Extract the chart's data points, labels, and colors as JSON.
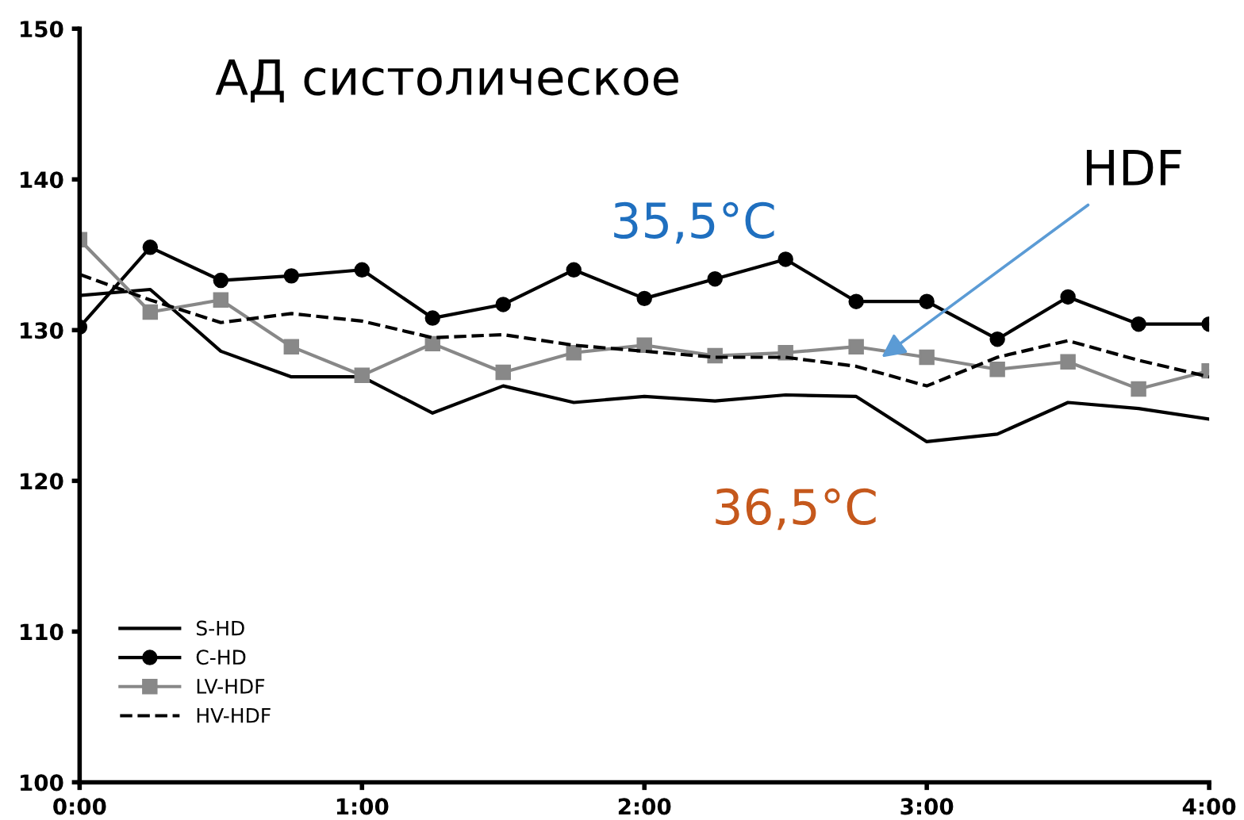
{
  "chart_data": {
    "type": "line",
    "title": "АД систолическое",
    "x": [
      0,
      0.25,
      0.5,
      0.75,
      1,
      1.25,
      1.5,
      1.75,
      2,
      2.25,
      2.5,
      2.75,
      3,
      3.25,
      3.5,
      3.75,
      4
    ],
    "series": [
      {
        "name": "S-HD",
        "color": "#000000",
        "marker": "none",
        "line_style": "solid",
        "values": [
          132.3,
          132.7,
          128.6,
          126.9,
          126.9,
          124.5,
          126.3,
          125.2,
          125.6,
          125.3,
          125.7,
          125.6,
          122.6,
          123.1,
          125.2,
          124.8,
          124.1
        ]
      },
      {
        "name": "C-HD",
        "color": "#000000",
        "marker": "circle",
        "line_style": "solid",
        "values": [
          130.2,
          135.5,
          133.3,
          133.6,
          134,
          130.8,
          131.7,
          134,
          132.1,
          133.4,
          134.7,
          131.9,
          131.9,
          129.4,
          132.2,
          130.4,
          130.4
        ]
      },
      {
        "name": "LV-HDF",
        "color": "#888888",
        "marker": "square",
        "line_style": "solid",
        "values": [
          136,
          131.2,
          132,
          128.9,
          127,
          129.1,
          127.2,
          128.5,
          129,
          128.3,
          128.5,
          128.9,
          128.2,
          127.4,
          127.9,
          126.1,
          127.3
        ]
      },
      {
        "name": "HV-HDF",
        "color": "#000000",
        "marker": "none",
        "line_style": "dashed",
        "values": [
          133.7,
          132,
          130.5,
          131.1,
          130.6,
          129.5,
          129.7,
          129,
          128.6,
          128.2,
          128.2,
          127.6,
          126.3,
          128.2,
          129.3,
          128,
          126.9
        ]
      }
    ],
    "xlim": [
      0,
      4
    ],
    "xticks": [
      {
        "value": 0,
        "label": "0:00"
      },
      {
        "value": 1,
        "label": "1:00"
      },
      {
        "value": 2,
        "label": "2:00"
      },
      {
        "value": 3,
        "label": "3:00"
      },
      {
        "value": 4,
        "label": "4:00"
      }
    ],
    "ylim": [
      100,
      150
    ],
    "yticks": [
      100,
      110,
      120,
      130,
      140,
      150
    ],
    "grid": false,
    "legend": "bottom left",
    "annotations": [
      "35,5°C",
      "36,5°C",
      {
        "text": "HDF",
        "x": 2.84,
        "y": 128.2
      }
    ]
  }
}
